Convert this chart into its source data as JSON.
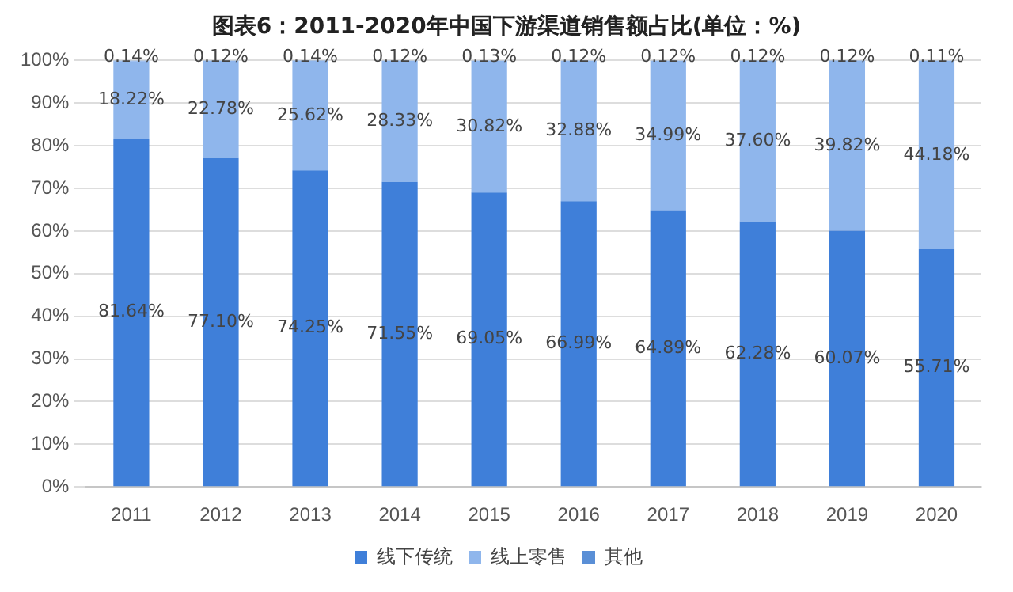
{
  "chart_data": {
    "type": "bar",
    "stacked": true,
    "title": "图表6：2011-2020年中国下游渠道销售额占比(单位：%)",
    "categories": [
      "2011",
      "2012",
      "2013",
      "2014",
      "2015",
      "2016",
      "2017",
      "2018",
      "2019",
      "2020"
    ],
    "series": [
      {
        "name": "线下传统",
        "color": "#3f7fd9",
        "values": [
          81.64,
          77.1,
          74.25,
          71.55,
          69.05,
          66.99,
          64.89,
          62.28,
          60.07,
          55.71
        ],
        "value_labels": [
          "81.64%",
          "77.10%",
          "74.25%",
          "71.55%",
          "69.05%",
          "66.99%",
          "64.89%",
          "62.28%",
          "60.07%",
          "55.71%"
        ]
      },
      {
        "name": "线上零售",
        "color": "#8fb6ec",
        "values": [
          18.22,
          22.78,
          25.62,
          28.33,
          30.82,
          32.88,
          34.99,
          37.6,
          39.82,
          44.18
        ],
        "value_labels": [
          "18.22%",
          "22.78%",
          "25.62%",
          "28.33%",
          "30.82%",
          "32.88%",
          "34.99%",
          "37.60%",
          "39.82%",
          "44.18%"
        ]
      },
      {
        "name": "其他",
        "color": "#5a8fd6",
        "values": [
          0.14,
          0.12,
          0.14,
          0.12,
          0.13,
          0.12,
          0.12,
          0.12,
          0.12,
          0.11
        ],
        "value_labels": [
          "0.14%",
          "0.12%",
          "0.14%",
          "0.12%",
          "0.13%",
          "0.12%",
          "0.12%",
          "0.12%",
          "0.12%",
          "0.11%"
        ]
      }
    ],
    "ylim": [
      0,
      100
    ],
    "yticks": [
      {
        "value": 0,
        "label": "0%"
      },
      {
        "value": 10,
        "label": "10%"
      },
      {
        "value": 20,
        "label": "20%"
      },
      {
        "value": 30,
        "label": "30%"
      },
      {
        "value": 40,
        "label": "40%"
      },
      {
        "value": 50,
        "label": "50%"
      },
      {
        "value": 60,
        "label": "60%"
      },
      {
        "value": 70,
        "label": "70%"
      },
      {
        "value": 80,
        "label": "80%"
      },
      {
        "value": 90,
        "label": "90%"
      },
      {
        "value": 100,
        "label": "100%"
      }
    ],
    "grid": "y",
    "legend": "bottom"
  }
}
